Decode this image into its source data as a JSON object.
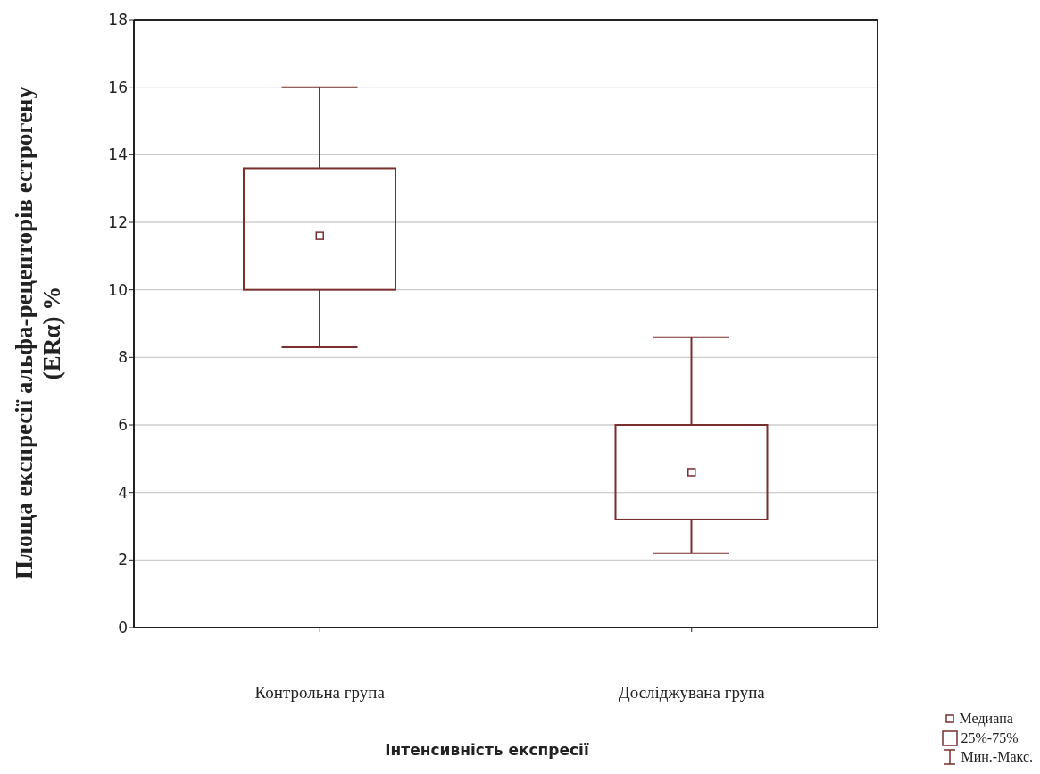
{
  "chart_data": {
    "type": "box",
    "ylabel": "Площа експресії альфа-рецепторів естрогену (ERα) %",
    "xlabel": "Інтенсивність експресії",
    "categories": [
      "Контрольна група",
      "Досліджувана група"
    ],
    "color": "#7a2e2e",
    "boxes": [
      {
        "low": 8.3,
        "q1": 10.0,
        "median": 11.6,
        "q3": 13.6,
        "high": 16.0
      },
      {
        "low": 2.2,
        "q1": 3.2,
        "median": 4.6,
        "q3": 6.0,
        "high": 8.6
      }
    ],
    "ylim": [
      0,
      18
    ],
    "yticks": [
      0,
      2,
      4,
      6,
      8,
      10,
      12,
      14,
      16,
      18
    ],
    "grid": "y",
    "marker": "square",
    "annotations": [
      "Медиана",
      "25%-75%",
      "Мин.-Макс."
    ]
  }
}
